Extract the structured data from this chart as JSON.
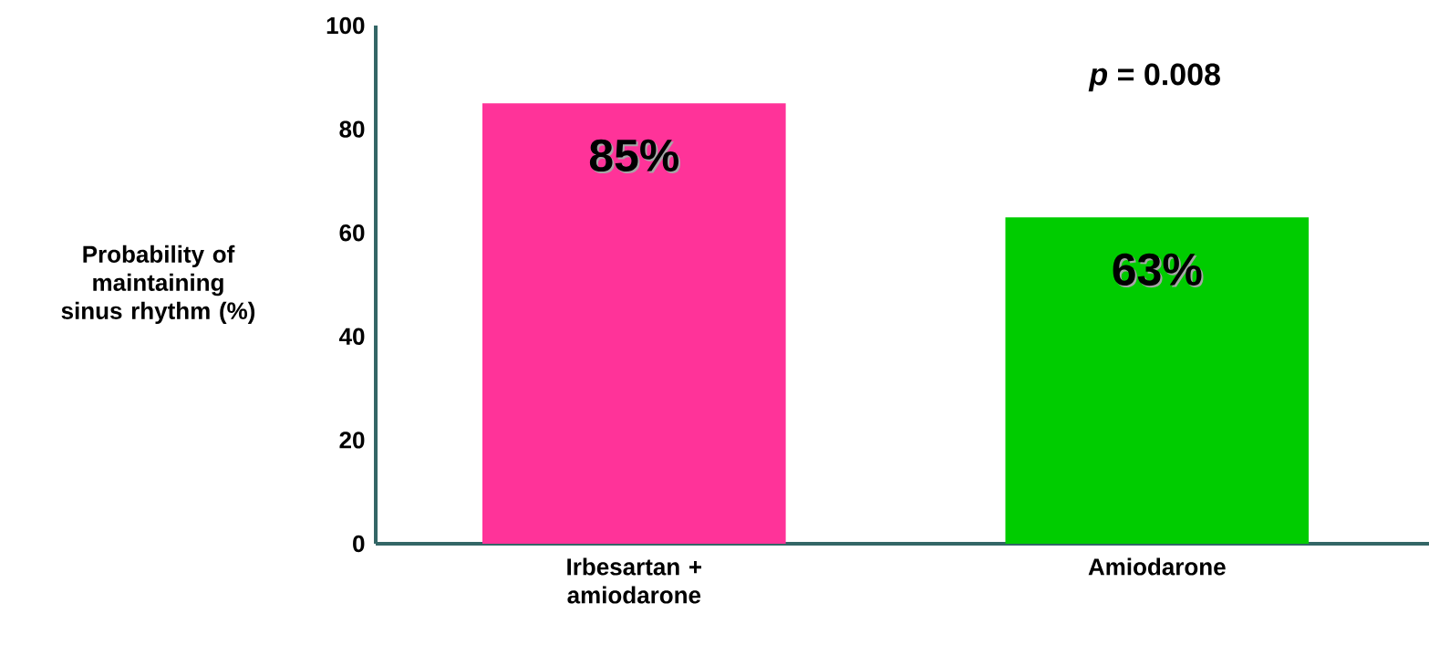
{
  "chart_data": {
    "type": "bar",
    "ylabel": "Probability of maintaining sinus rhythm (%)",
    "categories": [
      "Irbesartan + amiodarone",
      "Amiodarone"
    ],
    "values": [
      85,
      63
    ],
    "colors": [
      "#ff3399",
      "#00cc00"
    ],
    "value_labels": [
      "85%",
      "63%"
    ],
    "ylim": [
      0,
      100
    ],
    "yticks": [
      0,
      20,
      40,
      60,
      80,
      100
    ],
    "grid": false,
    "annotations": [
      "*p* = 0.008"
    ]
  }
}
